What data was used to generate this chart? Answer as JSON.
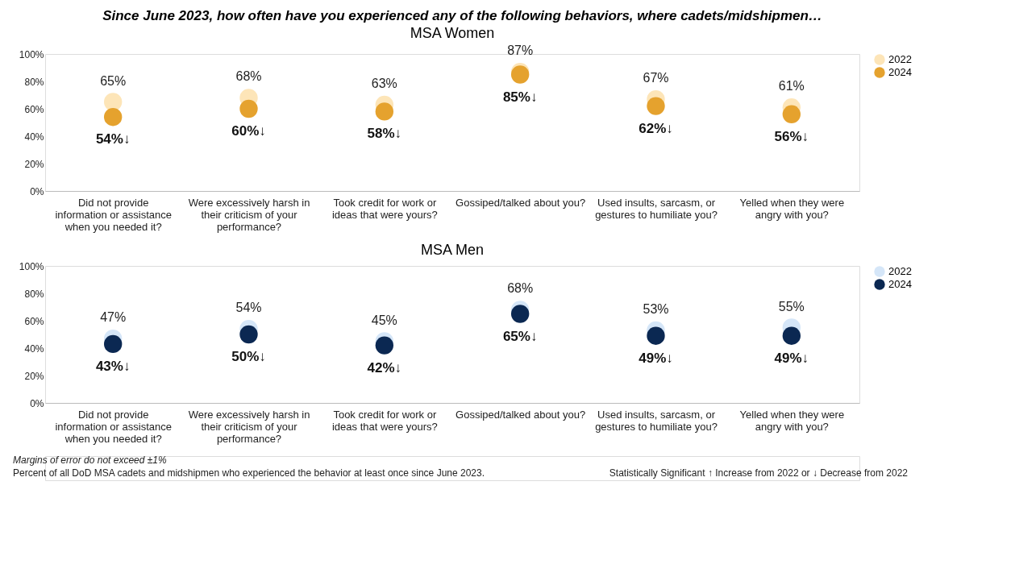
{
  "chart_data": [
    {
      "type": "scatter",
      "title": "Since June 2023, how often have you experienced any of the following  behaviors, where cadets/midshipmen…",
      "subtitle": "MSA Women",
      "categories": [
        "Did not provide information or assistance when you needed it?",
        "Were excessively harsh in their criticism of your performance?",
        "Took credit for work or ideas that were yours?",
        "Gossiped/talked about you?",
        "Used insults, sarcasm, or gestures to humiliate you?",
        "Yelled when they were angry with you?"
      ],
      "series": [
        {
          "name": "2022",
          "color": "#fde5b8",
          "values": [
            65,
            68,
            63,
            87,
            67,
            61
          ],
          "value_labels": [
            "65%",
            "68%",
            "63%",
            "87%",
            "67%",
            "61%"
          ]
        },
        {
          "name": "2024",
          "color": "#e5a22e",
          "values": [
            54,
            60,
            58,
            85,
            62,
            56
          ],
          "value_labels": [
            "54%↓",
            "60%↓",
            "58%↓",
            "85%↓",
            "62%↓",
            "56%↓"
          ]
        }
      ],
      "ylim": [
        0,
        100
      ],
      "yticks": [
        {
          "value": 0,
          "label": "0%"
        },
        {
          "value": 20,
          "label": "20%"
        },
        {
          "value": 40,
          "label": "40%"
        },
        {
          "value": 60,
          "label": "60%"
        },
        {
          "value": 80,
          "label": "80%"
        },
        {
          "value": 100,
          "label": "100%"
        }
      ],
      "marker": "circle",
      "legend": "right"
    },
    {
      "type": "scatter",
      "title": "MSA Men",
      "categories": [
        "Did not provide information or assistance when you needed it?",
        "Were excessively harsh in their criticism of your performance?",
        "Took credit for work or ideas that were yours?",
        "Gossiped/talked about you?",
        "Used insults, sarcasm, or gestures to humiliate you?",
        "Yelled when they were angry with you?"
      ],
      "series": [
        {
          "name": "2022",
          "color": "#d5e6f8",
          "values": [
            47,
            54,
            45,
            68,
            53,
            55
          ],
          "value_labels": [
            "47%",
            "54%",
            "45%",
            "68%",
            "53%",
            "55%"
          ]
        },
        {
          "name": "2024",
          "color": "#0b2852",
          "values": [
            43,
            50,
            42,
            65,
            49,
            49
          ],
          "value_labels": [
            "43%↓",
            "50%↓",
            "42%↓",
            "65%↓",
            "49%↓",
            "49%↓"
          ]
        }
      ],
      "ylim": [
        0,
        100
      ],
      "yticks": [
        {
          "value": 0,
          "label": "0%"
        },
        {
          "value": 20,
          "label": "20%"
        },
        {
          "value": 40,
          "label": "40%"
        },
        {
          "value": 60,
          "label": "60%"
        },
        {
          "value": 80,
          "label": "80%"
        },
        {
          "value": 100,
          "label": "100%"
        }
      ],
      "marker": "circle",
      "legend": "right",
      "annotations": [
        "Margins of error do not exceed ±1%",
        "Percent of all DoD MSA cadets and midshipmen who experienced the behavior at least once since June 2023.",
        "Statistically Significant ↑ Increase from 2022 or ↓ Decrease from 2022"
      ]
    }
  ]
}
